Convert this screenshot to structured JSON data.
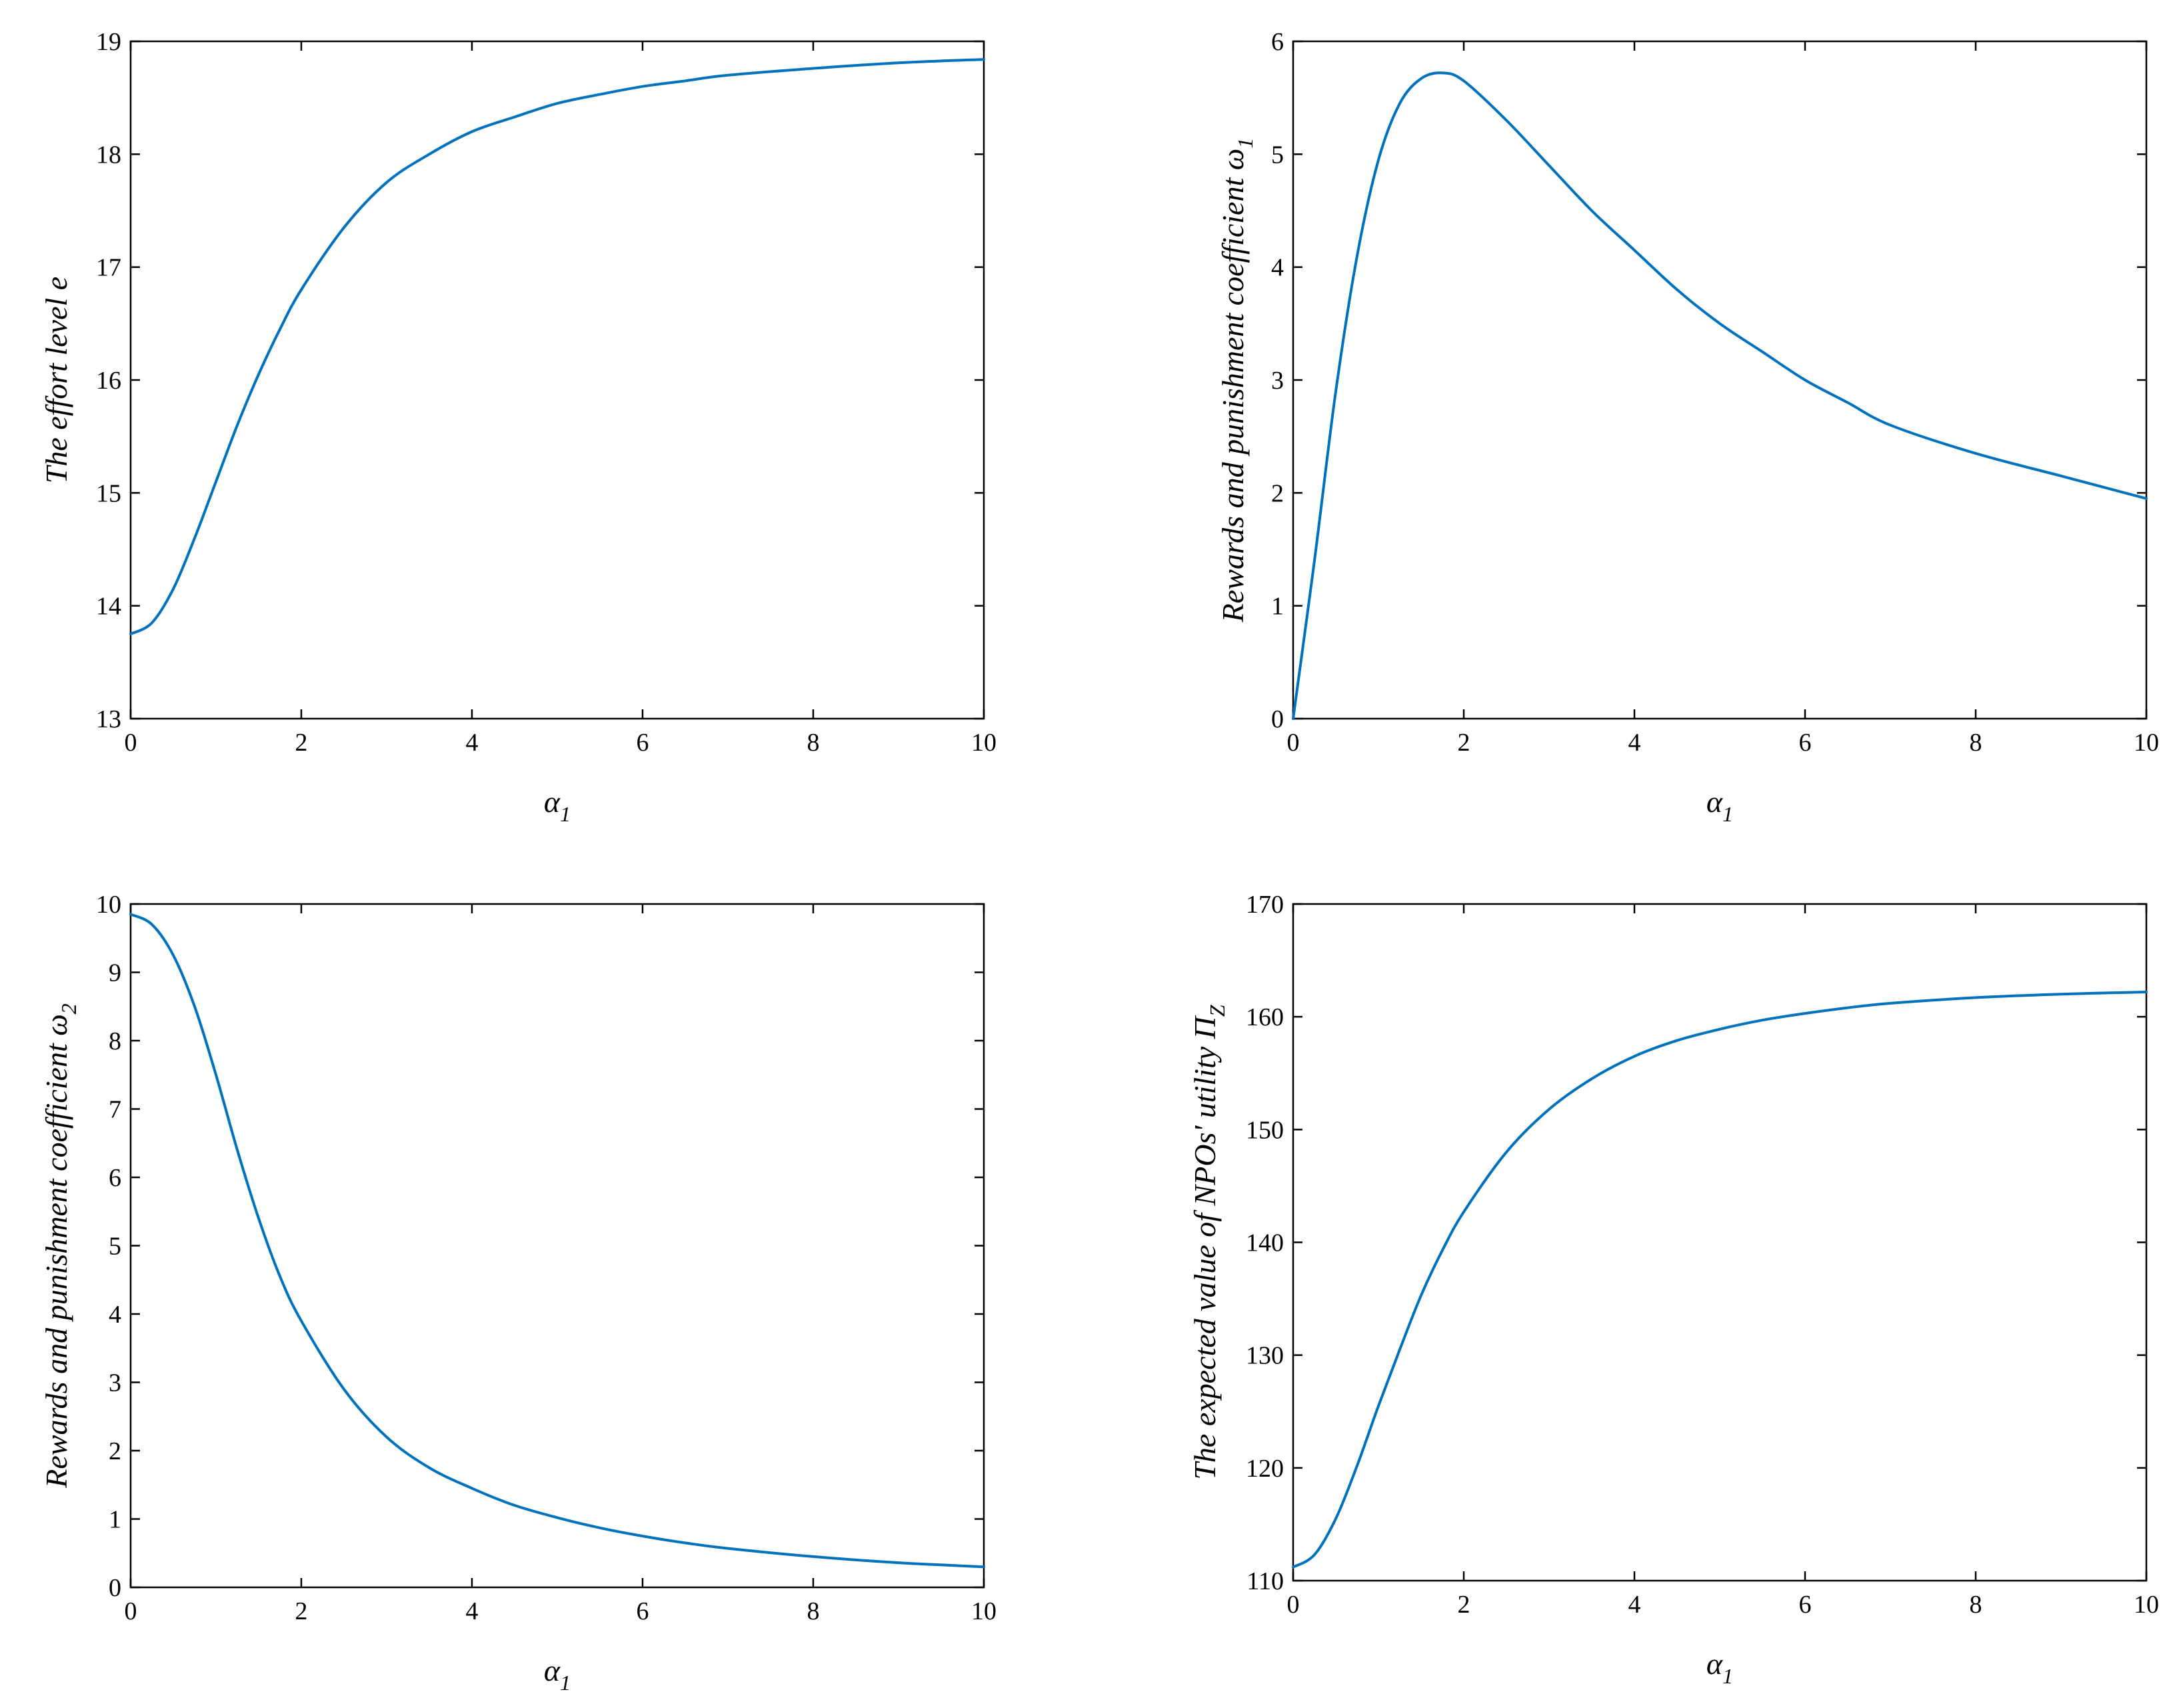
{
  "colors": {
    "series": "#0072bd",
    "axes": "#000000",
    "background": "#ffffff"
  },
  "chart_data": [
    {
      "id": "effort",
      "type": "line",
      "title": "",
      "xlabel": {
        "main": "α",
        "sub": "1"
      },
      "ylabel": {
        "main": "The effort level e",
        "sub": ""
      },
      "xlim": [
        0,
        10
      ],
      "ylim": [
        13,
        19
      ],
      "xticks": [
        0,
        2,
        4,
        6,
        8,
        10
      ],
      "yticks": [
        13,
        14,
        15,
        16,
        17,
        18,
        19
      ],
      "grid": false,
      "series": [
        {
          "x": [
            0,
            0.25,
            0.5,
            0.75,
            1,
            1.25,
            1.5,
            1.75,
            2,
            2.5,
            3,
            3.5,
            4,
            4.5,
            5,
            5.5,
            6,
            6.5,
            7,
            8,
            9,
            10
          ],
          "y": [
            13.75,
            13.85,
            14.15,
            14.6,
            15.1,
            15.6,
            16.05,
            16.45,
            16.8,
            17.35,
            17.75,
            18.0,
            18.2,
            18.33,
            18.45,
            18.53,
            18.6,
            18.65,
            18.7,
            18.76,
            18.81,
            18.84
          ]
        }
      ]
    },
    {
      "id": "omega1",
      "type": "line",
      "title": "",
      "xlabel": {
        "main": "α",
        "sub": "1"
      },
      "ylabel": {
        "main": "Rewards and punishment coefficient ω",
        "sub": "1"
      },
      "xlim": [
        0,
        10
      ],
      "ylim": [
        0,
        6
      ],
      "xticks": [
        0,
        2,
        4,
        6,
        8,
        10
      ],
      "yticks": [
        0,
        1,
        2,
        3,
        4,
        5,
        6
      ],
      "grid": false,
      "series": [
        {
          "x": [
            0,
            0.25,
            0.5,
            0.75,
            1,
            1.25,
            1.5,
            1.75,
            2,
            2.5,
            3,
            3.5,
            4,
            4.5,
            5,
            5.5,
            6,
            6.5,
            7,
            8,
            9,
            10
          ],
          "y": [
            0,
            1.4,
            2.9,
            4.1,
            4.95,
            5.45,
            5.67,
            5.72,
            5.65,
            5.3,
            4.9,
            4.5,
            4.15,
            3.8,
            3.5,
            3.25,
            3.0,
            2.8,
            2.6,
            2.35,
            2.15,
            1.95
          ]
        }
      ]
    },
    {
      "id": "omega2",
      "type": "line",
      "title": "",
      "xlabel": {
        "main": "α",
        "sub": "1"
      },
      "ylabel": {
        "main": "Rewards and punishment coefficient ω",
        "sub": "2"
      },
      "xlim": [
        0,
        10
      ],
      "ylim": [
        0,
        10
      ],
      "xticks": [
        0,
        2,
        4,
        6,
        8,
        10
      ],
      "yticks": [
        0,
        1,
        2,
        3,
        4,
        5,
        6,
        7,
        8,
        9,
        10
      ],
      "grid": false,
      "series": [
        {
          "x": [
            0,
            0.25,
            0.5,
            0.75,
            1,
            1.25,
            1.5,
            1.75,
            2,
            2.5,
            3,
            3.5,
            4,
            4.5,
            5,
            5.5,
            6,
            6.5,
            7,
            8,
            9,
            10
          ],
          "y": [
            9.85,
            9.7,
            9.25,
            8.5,
            7.5,
            6.4,
            5.4,
            4.55,
            3.9,
            2.9,
            2.2,
            1.75,
            1.45,
            1.2,
            1.02,
            0.87,
            0.75,
            0.65,
            0.57,
            0.45,
            0.36,
            0.3
          ]
        }
      ]
    },
    {
      "id": "utility",
      "type": "line",
      "title": "",
      "xlabel": {
        "main": "α",
        "sub": "1"
      },
      "ylabel": {
        "main": "The expected value of NPOs' utility Π",
        "sub": "Z"
      },
      "xlim": [
        0,
        10
      ],
      "ylim": [
        110,
        170
      ],
      "xticks": [
        0,
        2,
        4,
        6,
        8,
        10
      ],
      "yticks": [
        110,
        120,
        130,
        140,
        150,
        160,
        170
      ],
      "grid": false,
      "series": [
        {
          "x": [
            0,
            0.25,
            0.5,
            0.75,
            1,
            1.25,
            1.5,
            1.75,
            2,
            2.5,
            3,
            3.5,
            4,
            4.5,
            5,
            5.5,
            6,
            6.5,
            7,
            8,
            9,
            10
          ],
          "y": [
            111.2,
            112.3,
            115.5,
            120.2,
            125.5,
            130.5,
            135.3,
            139.3,
            142.7,
            148.0,
            151.8,
            154.5,
            156.5,
            157.9,
            158.9,
            159.7,
            160.3,
            160.8,
            161.2,
            161.7,
            162.0,
            162.2
          ]
        }
      ]
    }
  ]
}
